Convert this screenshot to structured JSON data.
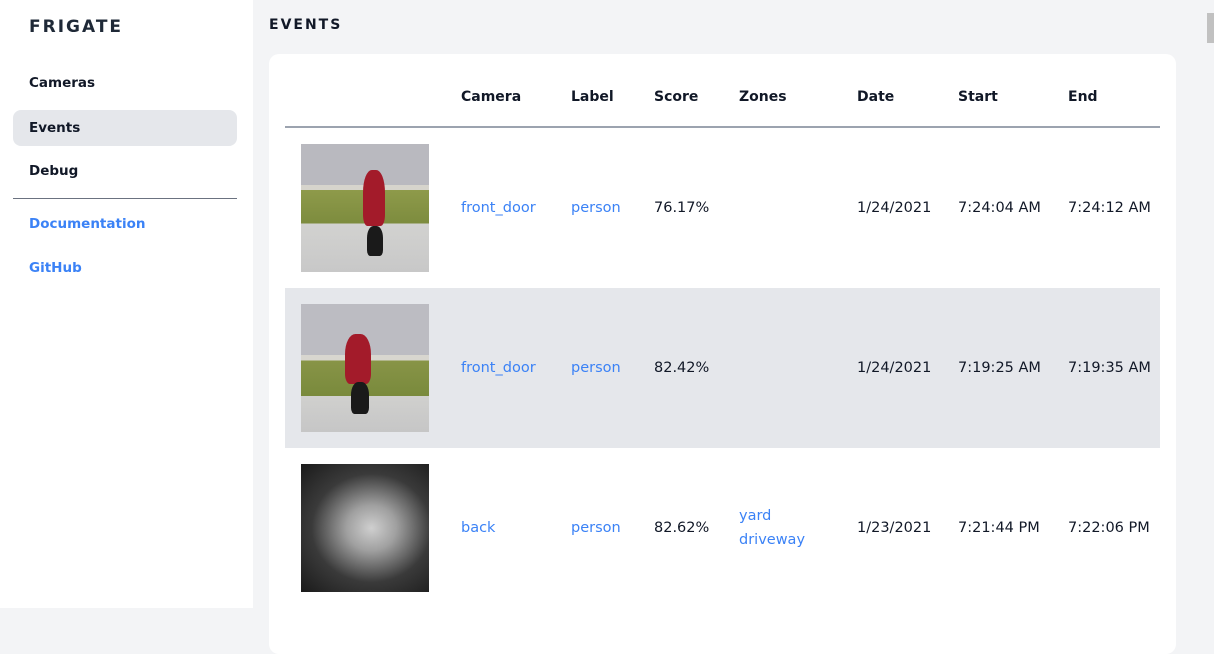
{
  "sidebar": {
    "brand": "FRIGATE",
    "items": [
      {
        "label": "Cameras"
      },
      {
        "label": "Events"
      },
      {
        "label": "Debug"
      }
    ],
    "links": [
      {
        "label": "Documentation"
      },
      {
        "label": "GitHub"
      }
    ]
  },
  "page": {
    "title": "EVENTS"
  },
  "table": {
    "headers": [
      "Camera",
      "Label",
      "Score",
      "Zones",
      "Date",
      "Start",
      "End"
    ],
    "rows": [
      {
        "camera": "front_door",
        "label": "person",
        "score": "76.17%",
        "zones": [
          "",
          ""
        ],
        "date": "1/24/2021",
        "start": "7:24:04 AM",
        "end": "7:24:12 AM"
      },
      {
        "camera": "front_door",
        "label": "person",
        "score": "82.42%",
        "zones": [
          "",
          ""
        ],
        "date": "1/24/2021",
        "start": "7:19:25 AM",
        "end": "7:19:35 AM"
      },
      {
        "camera": "back",
        "label": "person",
        "score": "82.62%",
        "zones": [
          "yard",
          "driveway"
        ],
        "date": "1/23/2021",
        "start": "7:21:44 PM",
        "end": "7:22:06 PM"
      }
    ]
  },
  "colors": {
    "accent": "#3b82f6",
    "active_bg": "#e5e7eb",
    "page_bg": "#f3f4f6"
  }
}
